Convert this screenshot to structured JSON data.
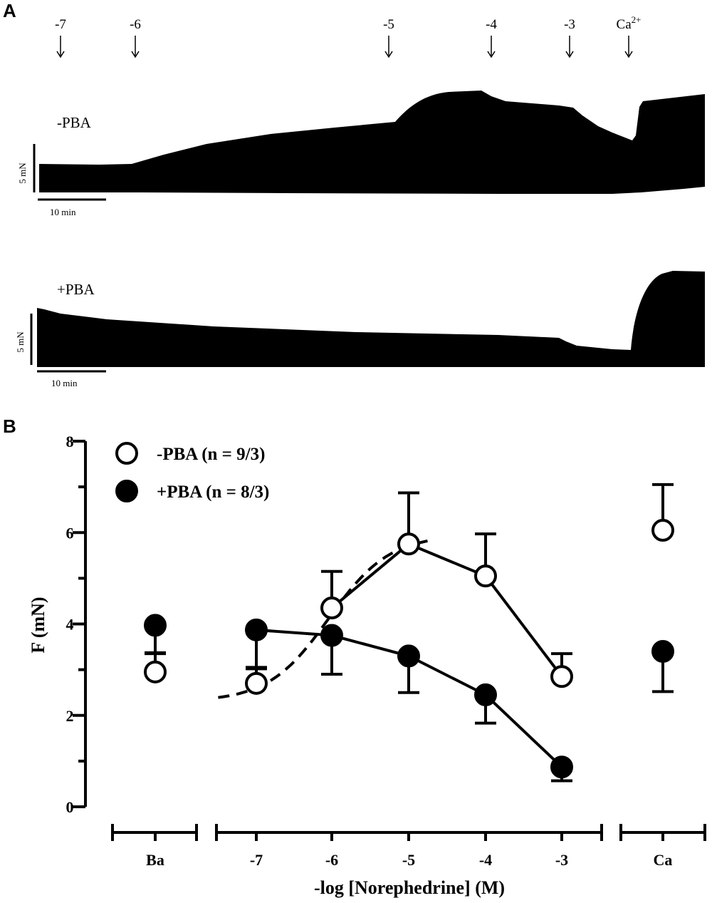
{
  "panels": {
    "a_label": "A",
    "b_label": "B"
  },
  "trace_panel": {
    "additions": [
      {
        "label": "-7"
      },
      {
        "label": "-6"
      },
      {
        "label": "-5"
      },
      {
        "label": "-4"
      },
      {
        "label": "-3"
      },
      {
        "label_base": "Ca",
        "label_sup": "2+"
      }
    ],
    "trace_top_label": "-PBA",
    "trace_bottom_label": "+PBA",
    "force_scale_label": "5 mN",
    "time_scale_label": "10 min",
    "trace_color": "#000000"
  },
  "chart_data": {
    "type": "scatter",
    "ylabel": "F (mN)",
    "xlabel": "-log [Norephedrine] (M)",
    "ylim": [
      0,
      8
    ],
    "yticks": [
      0,
      2,
      4,
      6,
      8
    ],
    "groups": [
      {
        "label": "Ba",
        "categories": [
          "Ba"
        ]
      },
      {
        "label": "",
        "categories": [
          "-7",
          "-6",
          "-5",
          "-4",
          "-3"
        ]
      },
      {
        "label": "Ca",
        "categories": [
          "Ca"
        ]
      }
    ],
    "categories": [
      "Ba",
      "-7",
      "-6",
      "-5",
      "-4",
      "-3",
      "Ca"
    ],
    "series": [
      {
        "name": "-PBA (n = 9/3)",
        "marker": "open-circle",
        "values": [
          2.95,
          2.7,
          4.35,
          5.75,
          5.05,
          2.85,
          6.05
        ],
        "errors": [
          0.4,
          0.35,
          0.8,
          1.12,
          0.92,
          0.5,
          1.0
        ],
        "error_direction": [
          "up",
          "up",
          "up",
          "up",
          "up",
          "up",
          "up"
        ],
        "connect": [
          "-6",
          "-5",
          "-4",
          "-3"
        ]
      },
      {
        "name": "+PBA (n = 8/3)",
        "marker": "filled-circle",
        "values": [
          3.97,
          3.87,
          3.75,
          3.3,
          2.45,
          0.87,
          3.4
        ],
        "errors": [
          0.6,
          0.85,
          0.85,
          0.8,
          0.62,
          0.3,
          0.88
        ],
        "error_direction": [
          "down",
          "down",
          "down",
          "down",
          "down",
          "down",
          "down"
        ],
        "connect": [
          "-7",
          "-6",
          "-5",
          "-4",
          "-3"
        ]
      }
    ],
    "dashed_fit": {
      "series": "-PBA (n = 9/3)",
      "x_start": -7.5,
      "x_end": -4.75,
      "bottom": 2.3,
      "top": 5.95,
      "log_ec50": -6.05,
      "hill_slope": 1.1
    },
    "legend_position": "top-left",
    "grid": false
  }
}
